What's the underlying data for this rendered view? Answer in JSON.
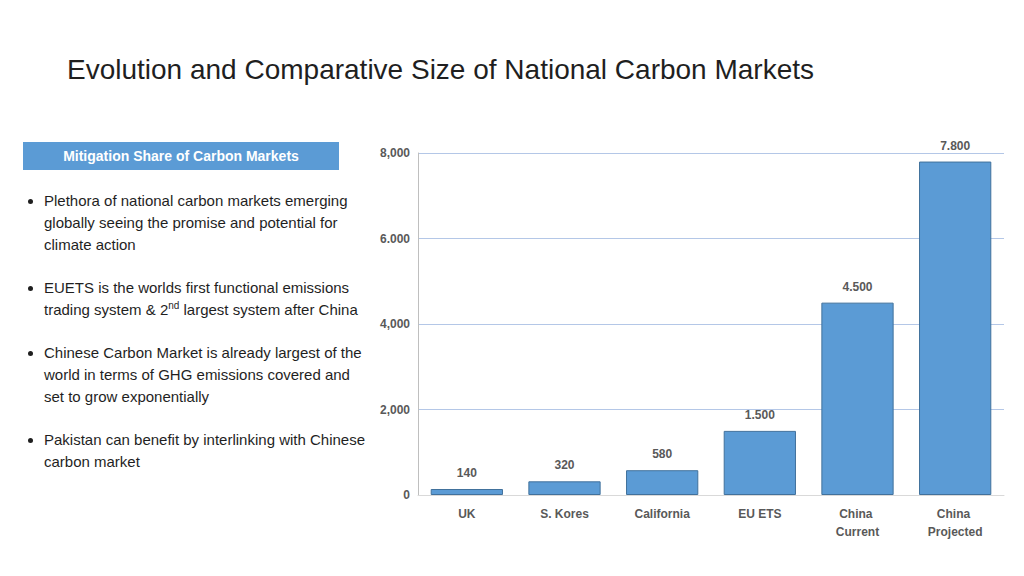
{
  "header": {
    "title": "Evolution and Comparative Size of National Carbon Markets"
  },
  "panel": {
    "label": "Mitigation Share of Carbon Markets",
    "bullets": [
      [
        {
          "text": "Plethora of national carbon markets emerging globally seeing the promise and potential for climate action"
        }
      ],
      [
        {
          "text": "EUETS is the worlds first functional emissions trading system & 2"
        },
        {
          "text": "nd",
          "sup": true
        },
        {
          "text": " largest system after China"
        }
      ],
      [
        {
          "text": "Chinese Carbon Market is already largest of the world in terms of GHG emissions covered and set to grow exponentially"
        }
      ],
      [
        {
          "text": "Pakistan can benefit by interlinking with Chinese carbon market"
        }
      ]
    ]
  },
  "chart_data": {
    "type": "bar",
    "categories": [
      "UK",
      "S. Kores",
      "California",
      "EU ETS",
      "China Current",
      "China Projected"
    ],
    "values": [
      140,
      320,
      580,
      1500,
      4500,
      7800
    ],
    "value_labels": [
      "140",
      "320",
      "580",
      "1.500",
      "4.500",
      "7.800"
    ],
    "color": "#5b9bd5",
    "ylim": [
      0,
      8000
    ],
    "yticks": [
      0,
      {
        "value": 2000,
        "label": "2,000"
      },
      {
        "value": 4000,
        "label": "4,000"
      },
      {
        "value": 6000,
        "label": "6.000"
      },
      {
        "value": 8000,
        "label": "8,000"
      }
    ],
    "grid": true,
    "data_labels": true
  }
}
